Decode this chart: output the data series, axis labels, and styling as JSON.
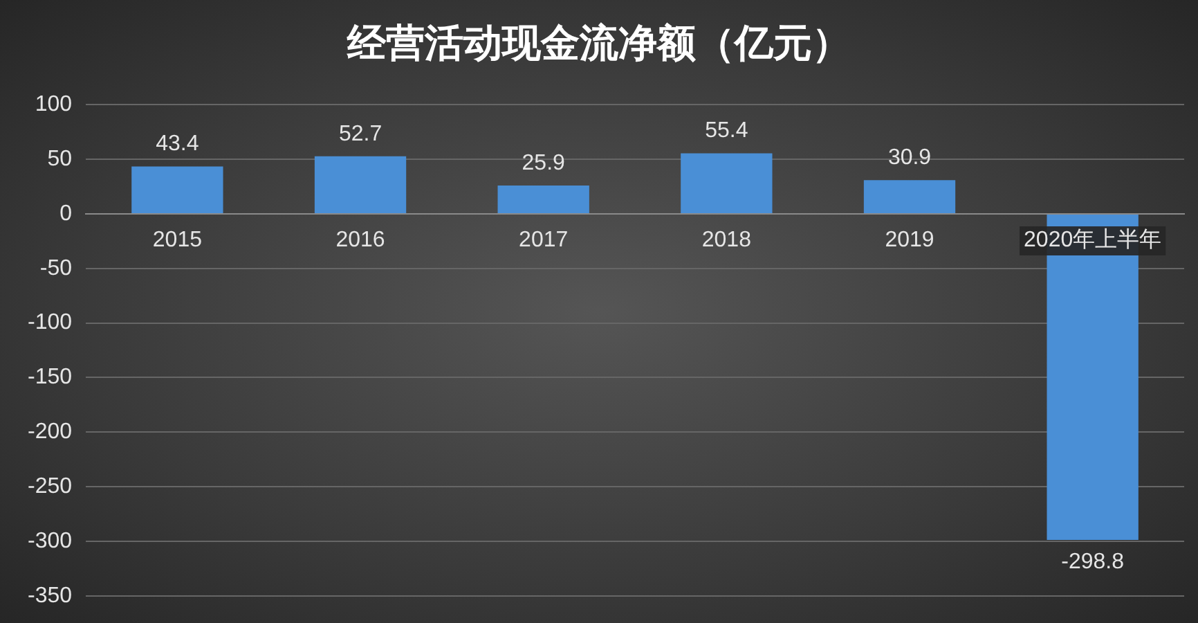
{
  "chart_data": {
    "type": "bar",
    "title": "经营活动现金流净额（亿元）",
    "categories": [
      "2015",
      "2016",
      "2017",
      "2018",
      "2019",
      "2020年上半年"
    ],
    "values": [
      43.4,
      52.7,
      25.9,
      55.4,
      30.9,
      -298.8
    ],
    "color": "#4a8fd6",
    "ylim": [
      -350,
      100
    ],
    "yticks": [
      -350,
      -300,
      -250,
      -200,
      -150,
      -100,
      -50,
      0,
      50,
      100
    ],
    "grid": "y",
    "data_labels": true,
    "legend": false
  }
}
